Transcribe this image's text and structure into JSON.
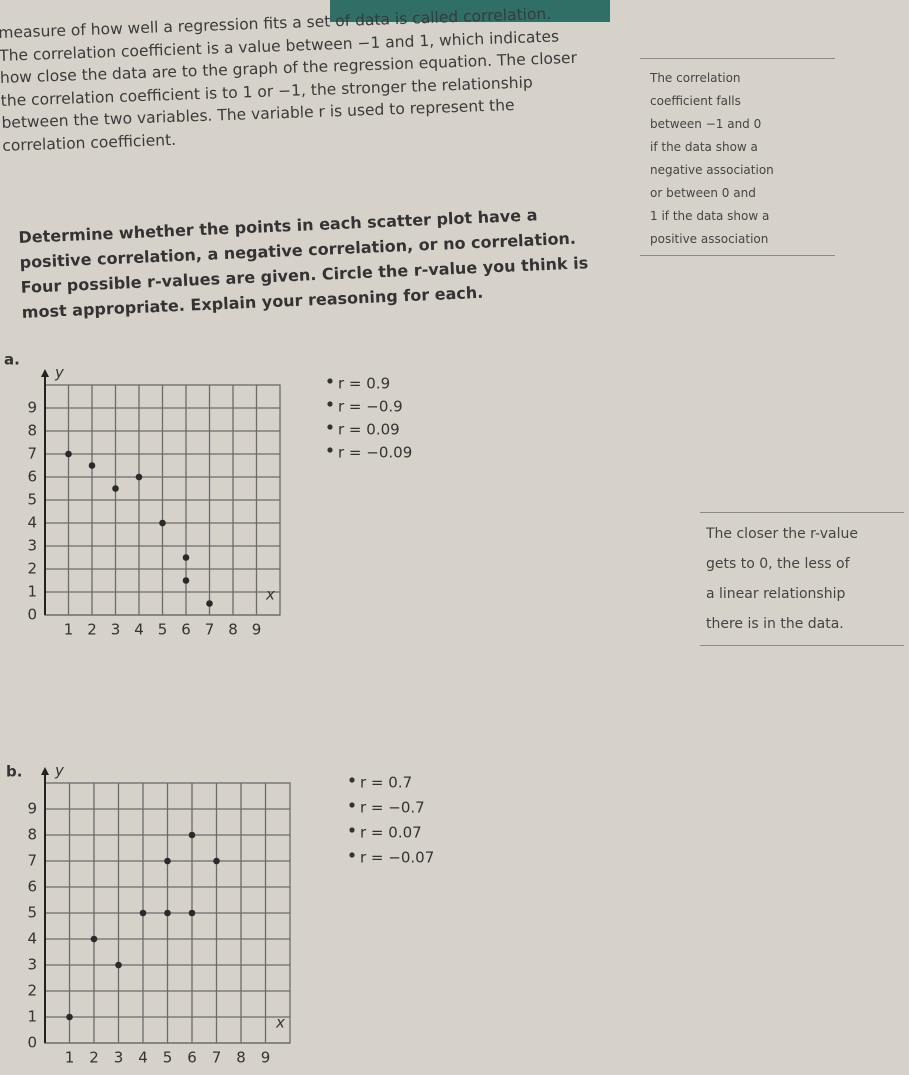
{
  "intro": [
    "measure of how well a regression fits a set of data is called correlation.",
    "The correlation coefficient is a value between −1 and 1, which indicates",
    "how close the data are to the graph of the regression equation. The closer",
    "the correlation coefficient is to 1 or −1, the stronger the relationship",
    "between the two variables. The variable r is used to represent the",
    "correlation coefficient."
  ],
  "side_note": [
    "The correlation",
    "coefficient falls",
    "between −1 and 0",
    "if the data show a",
    "negative association",
    "or between 0 and",
    "1 if the data show a",
    "positive association"
  ],
  "instructions": [
    "Determine whether the points in each scatter plot have a",
    "positive correlation, a negative correlation, or no correlation.",
    "Four possible r-values are given. Circle the r-value you think is",
    "most appropriate. Explain your reasoning for each."
  ],
  "margin_note": [
    "The closer the r-value",
    "gets to 0, the less of",
    "a linear relationship",
    "there is in the data."
  ],
  "problems": [
    {
      "label": "a.",
      "options": [
        "r = 0.9",
        "r = −0.9",
        "r = 0.09",
        "r = −0.09"
      ],
      "plot": {
        "type": "scatter",
        "x_label": "x",
        "y_label": "y",
        "x": [
          1,
          2,
          3,
          4,
          5,
          6,
          6,
          7
        ],
        "y": [
          7,
          6.5,
          5.5,
          6,
          4,
          2.5,
          1.5,
          0.5
        ],
        "xlim": [
          0,
          10
        ],
        "ylim": [
          0,
          10
        ],
        "xticks": [
          1,
          2,
          3,
          4,
          5,
          6,
          7,
          8,
          9
        ],
        "yticks": [
          0,
          1,
          2,
          3,
          4,
          5,
          6,
          7,
          8,
          9
        ],
        "grid": true,
        "color": "#2a2a2a"
      }
    },
    {
      "label": "b.",
      "options": [
        "r = 0.7",
        "r = −0.7",
        "r = 0.07",
        "r = −0.07"
      ],
      "plot": {
        "type": "scatter",
        "x_label": "x",
        "y_label": "y",
        "x": [
          1,
          2,
          3,
          4,
          5,
          6,
          5,
          6,
          7
        ],
        "y": [
          1,
          4,
          3,
          5,
          5,
          5,
          7,
          8,
          7
        ],
        "xlim": [
          0,
          10
        ],
        "ylim": [
          0,
          10
        ],
        "xticks": [
          1,
          2,
          3,
          4,
          5,
          6,
          7,
          8,
          9
        ],
        "yticks": [
          0,
          1,
          2,
          3,
          4,
          5,
          6,
          7,
          8,
          9
        ],
        "grid": true,
        "color": "#2a2a2a"
      }
    }
  ]
}
